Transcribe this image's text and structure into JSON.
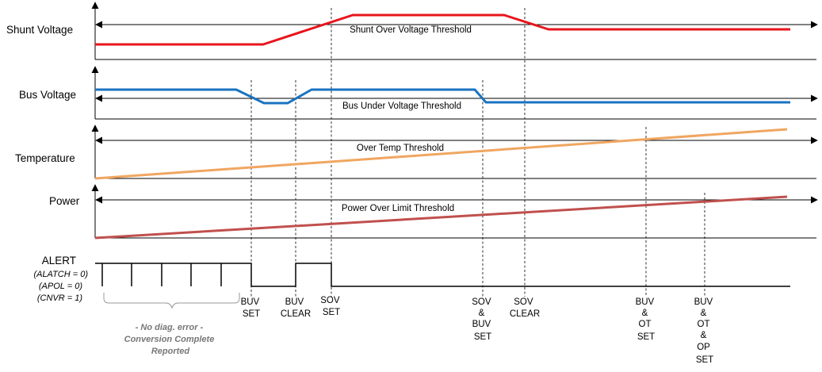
{
  "signals": {
    "shunt_voltage": {
      "label": "Shunt Voltage",
      "threshold": "Shunt Over Voltage Threshold",
      "color": "#e8141b"
    },
    "bus_voltage": {
      "label": "Bus Voltage",
      "threshold": "Bus Under Voltage Threshold",
      "color": "#1a73c0"
    },
    "temperature": {
      "label": "Temperature",
      "threshold": "Over Temp Threshold",
      "color": "#f0a660"
    },
    "power": {
      "label": "Power",
      "threshold": "Power Over Limit Threshold",
      "color": "#c0504d"
    }
  },
  "alert": {
    "title": "ALERT",
    "params": [
      "(ALATCH = 0)",
      "(APOL = 0)",
      "(CNVR = 1)"
    ]
  },
  "events": [
    {
      "lines": [
        "BUV",
        "SET"
      ]
    },
    {
      "lines": [
        "BUV",
        "CLEAR"
      ]
    },
    {
      "lines": [
        "SOV",
        "SET"
      ]
    },
    {
      "lines": [
        "SOV",
        "&",
        "BUV",
        "SET"
      ]
    },
    {
      "lines": [
        "SOV",
        "CLEAR"
      ]
    },
    {
      "lines": [
        "BUV",
        "&",
        "OT",
        "SET"
      ]
    },
    {
      "lines": [
        "BUV",
        "&",
        "OT",
        "&",
        "OP",
        "SET"
      ]
    }
  ],
  "note": [
    "- No diag. error -",
    "Conversion Complete",
    "Reported"
  ]
}
